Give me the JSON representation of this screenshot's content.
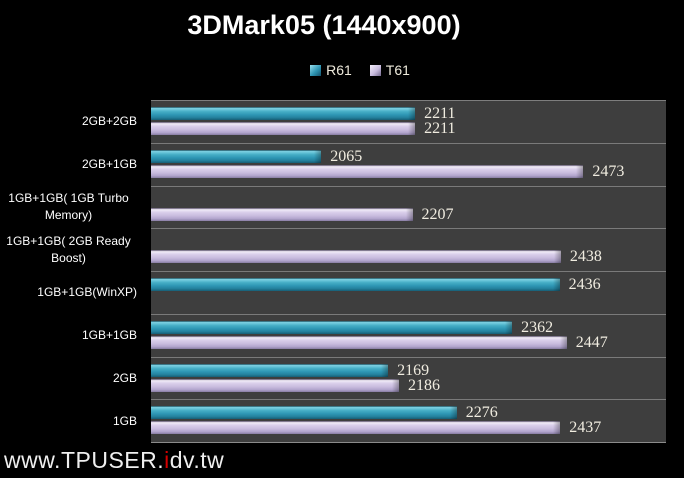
{
  "chart_data": {
    "type": "bar",
    "orientation": "horizontal",
    "title": "3DMark05 (1440x900)",
    "categories": [
      "2GB+2GB",
      "2GB+1GB",
      "1GB+1GB( 1GB Turbo Memory)",
      "1GB+1GB( 2GB Ready Boost)",
      "1GB+1GB(WinXP)",
      "1GB+1GB",
      "2GB",
      "1GB"
    ],
    "series": [
      {
        "name": "R61",
        "color": "#2E96B4",
        "values": [
          2211,
          2065,
          null,
          null,
          2436,
          2362,
          2169,
          2276
        ]
      },
      {
        "name": "T61",
        "color": "#C9BCDE",
        "values": [
          2211,
          2473,
          2207,
          2438,
          null,
          2447,
          2186,
          2437
        ]
      }
    ],
    "xlim": [
      1800,
      2600
    ],
    "x_axis_visible": false,
    "grid": "category-separator-lines",
    "value_labels": true,
    "legend_position": "top",
    "plot_background": "#3E3E3E",
    "page_background": "#000000",
    "separator_color": "#7A7A7A",
    "value_label_color": "#F0ECE0",
    "category_label_color": "#FFFFFF"
  },
  "watermark": {
    "prefix": "www.TPUSER.",
    "accent": "i",
    "suffix": "dv.tw",
    "text_color": "#EFEFEF",
    "accent_color": "#D40000"
  }
}
